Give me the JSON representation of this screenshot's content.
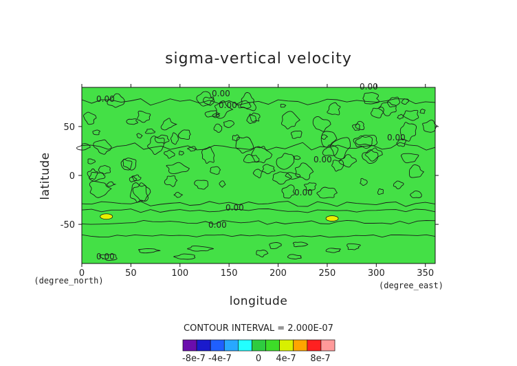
{
  "chart_data": {
    "type": "heatmap",
    "title": "sigma-vertical velocity",
    "xlabel": "longitude",
    "ylabel": "latitude",
    "x_unit": "(degree_east)",
    "y_unit": "(degree_north)",
    "xlim": [
      0,
      360
    ],
    "ylim": [
      -90,
      90
    ],
    "x_ticks": [
      0,
      50,
      100,
      150,
      200,
      250,
      300,
      350
    ],
    "y_ticks": [
      -50,
      0,
      50
    ],
    "contour_interval_text": "CONTOUR INTERVAL = 2.000E-07",
    "contour_labels": [
      "0.00",
      "0.00",
      "0.00",
      "0.00",
      "0.00",
      "0.00",
      "0.00",
      "0.00",
      "0.00",
      "0.00"
    ],
    "colorbar": {
      "tick_labels": [
        "-8e-7",
        "-4e-7",
        "0",
        "4e-7",
        "8e-7"
      ],
      "colors": [
        "#6a0dad",
        "#1a1acc",
        "#1f5fff",
        "#28a8ff",
        "#22ffff",
        "#2ecc40",
        "#3ddc28",
        "#d8f000",
        "#ffa500",
        "#ff2020",
        "#ff9a9a"
      ]
    },
    "field_color": "#44e046",
    "positive_patches": [
      {
        "lon": 25,
        "lat": -42,
        "value": 4e-07
      },
      {
        "lon": 255,
        "lat": -44,
        "value": 4e-07
      }
    ]
  }
}
